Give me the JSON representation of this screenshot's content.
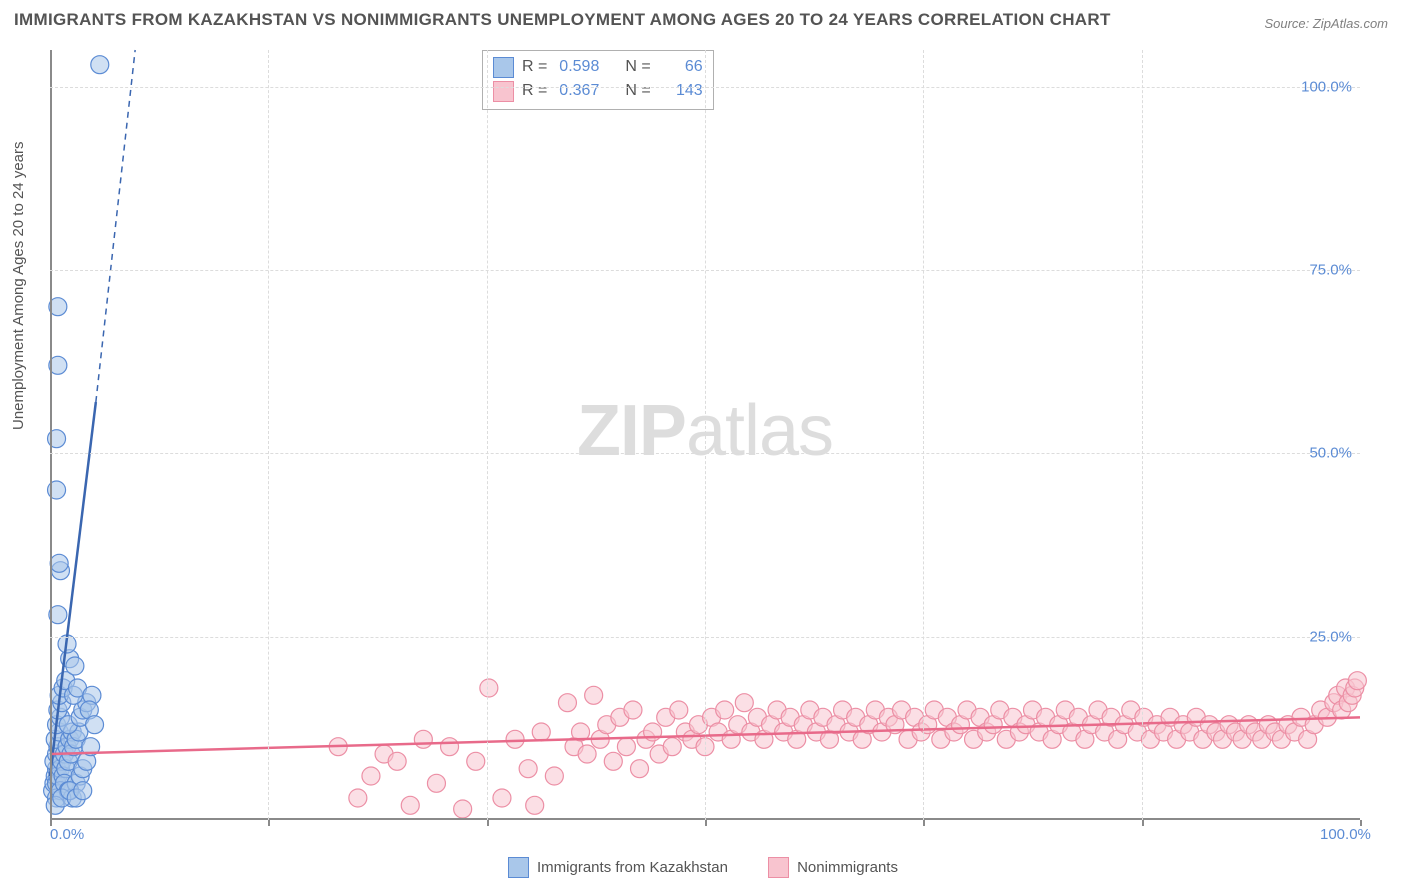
{
  "title": "IMMIGRANTS FROM KAZAKHSTAN VS NONIMMIGRANTS UNEMPLOYMENT AMONG AGES 20 TO 24 YEARS CORRELATION CHART",
  "source": "Source: ZipAtlas.com",
  "y_axis_label": "Unemployment Among Ages 20 to 24 years",
  "watermark_bold": "ZIP",
  "watermark_light": "atlas",
  "chart": {
    "type": "scatter",
    "background_color": "#ffffff",
    "grid_color": "#dcdcdc",
    "axis_color": "#8a8a8a",
    "label_color": "#5b8bd4",
    "text_color": "#545454",
    "xlim": [
      0,
      100
    ],
    "ylim": [
      0,
      105
    ],
    "x_ticks": [
      0,
      16.67,
      33.33,
      50,
      66.67,
      83.33,
      100
    ],
    "x_tick_labels": {
      "0": "0.0%",
      "100": "100.0%"
    },
    "y_ticks": [
      25,
      50,
      75,
      100
    ],
    "y_tick_labels": {
      "25": "25.0%",
      "50": "50.0%",
      "75": "75.0%",
      "100": "100.0%"
    },
    "marker_radius": 9,
    "marker_opacity": 0.55,
    "marker_stroke_width": 1.2,
    "trend_line_width": 2.5
  },
  "series": {
    "blue": {
      "fill": "#a9c7ea",
      "stroke": "#5b8bd4",
      "line_color": "#3a66b0",
      "R_label": "R =",
      "R": "0.598",
      "N_label": "N =",
      "N": "66",
      "legend_label": "Immigrants from Kazakhstan",
      "trend": {
        "x1": 0,
        "y1": 6,
        "x2": 3.5,
        "y2": 57,
        "dashed_x2": 6.5,
        "dashed_y2": 105
      },
      "points": [
        [
          0.2,
          4
        ],
        [
          0.3,
          5
        ],
        [
          0.4,
          6
        ],
        [
          0.5,
          7
        ],
        [
          0.3,
          8
        ],
        [
          0.5,
          9
        ],
        [
          0.6,
          10
        ],
        [
          0.4,
          11
        ],
        [
          0.7,
          12
        ],
        [
          0.5,
          13
        ],
        [
          0.8,
          14
        ],
        [
          0.6,
          15
        ],
        [
          0.9,
          16
        ],
        [
          0.7,
          17
        ],
        [
          1.0,
          18
        ],
        [
          1.2,
          19
        ],
        [
          0.5,
          5
        ],
        [
          0.6,
          6
        ],
        [
          0.8,
          7
        ],
        [
          0.9,
          8
        ],
        [
          1.1,
          9
        ],
        [
          1.3,
          10
        ],
        [
          1.5,
          11
        ],
        [
          1.7,
          12
        ],
        [
          1.0,
          6
        ],
        [
          1.2,
          7
        ],
        [
          1.4,
          8
        ],
        [
          1.6,
          9
        ],
        [
          1.8,
          10
        ],
        [
          2.0,
          11
        ],
        [
          2.2,
          12
        ],
        [
          1.4,
          13
        ],
        [
          2.3,
          14
        ],
        [
          2.5,
          15
        ],
        [
          2.8,
          16
        ],
        [
          1.8,
          17
        ],
        [
          2.1,
          18
        ],
        [
          3.2,
          17
        ],
        [
          3.0,
          15
        ],
        [
          3.4,
          13
        ],
        [
          0.5,
          3
        ],
        [
          0.8,
          4
        ],
        [
          1.1,
          5
        ],
        [
          1.4,
          4
        ],
        [
          1.7,
          3
        ],
        [
          2.0,
          5
        ],
        [
          2.3,
          6
        ],
        [
          2.5,
          7
        ],
        [
          2.8,
          8
        ],
        [
          3.1,
          10
        ],
        [
          1.5,
          22
        ],
        [
          1.9,
          21
        ],
        [
          1.3,
          24
        ],
        [
          0.6,
          28
        ],
        [
          0.8,
          34
        ],
        [
          0.7,
          35
        ],
        [
          0.5,
          45
        ],
        [
          0.5,
          52
        ],
        [
          0.6,
          62
        ],
        [
          0.6,
          70
        ],
        [
          3.8,
          103
        ],
        [
          0.4,
          2
        ],
        [
          0.9,
          3
        ],
        [
          1.5,
          4
        ],
        [
          2.0,
          3
        ],
        [
          2.5,
          4
        ]
      ]
    },
    "pink": {
      "fill": "#f8c4cf",
      "stroke": "#ec8fa5",
      "line_color": "#e86a8a",
      "R_label": "R =",
      "R": "0.367",
      "N_label": "N =",
      "N": "143",
      "legend_label": "Nonimmigrants",
      "trend": {
        "x1": 0,
        "y1": 9,
        "x2": 100,
        "y2": 14
      },
      "points": [
        [
          22,
          10
        ],
        [
          23.5,
          3
        ],
        [
          24.5,
          6
        ],
        [
          25.5,
          9
        ],
        [
          26.5,
          8
        ],
        [
          27.5,
          2
        ],
        [
          28.5,
          11
        ],
        [
          29.5,
          5
        ],
        [
          30.5,
          10
        ],
        [
          31.5,
          1.5
        ],
        [
          32.5,
          8
        ],
        [
          33.5,
          18
        ],
        [
          34.5,
          3
        ],
        [
          35.5,
          11
        ],
        [
          36.5,
          7
        ],
        [
          37,
          2
        ],
        [
          37.5,
          12
        ],
        [
          38.5,
          6
        ],
        [
          39.5,
          16
        ],
        [
          40,
          10
        ],
        [
          40.5,
          12
        ],
        [
          41,
          9
        ],
        [
          41.5,
          17
        ],
        [
          42,
          11
        ],
        [
          42.5,
          13
        ],
        [
          43,
          8
        ],
        [
          43.5,
          14
        ],
        [
          44,
          10
        ],
        [
          44.5,
          15
        ],
        [
          45,
          7
        ],
        [
          45.5,
          11
        ],
        [
          46,
          12
        ],
        [
          46.5,
          9
        ],
        [
          47,
          14
        ],
        [
          47.5,
          10
        ],
        [
          48,
          15
        ],
        [
          48.5,
          12
        ],
        [
          49,
          11
        ],
        [
          49.5,
          13
        ],
        [
          50,
          10
        ],
        [
          50.5,
          14
        ],
        [
          51,
          12
        ],
        [
          51.5,
          15
        ],
        [
          52,
          11
        ],
        [
          52.5,
          13
        ],
        [
          53,
          16
        ],
        [
          53.5,
          12
        ],
        [
          54,
          14
        ],
        [
          54.5,
          11
        ],
        [
          55,
          13
        ],
        [
          55.5,
          15
        ],
        [
          56,
          12
        ],
        [
          56.5,
          14
        ],
        [
          57,
          11
        ],
        [
          57.5,
          13
        ],
        [
          58,
          15
        ],
        [
          58.5,
          12
        ],
        [
          59,
          14
        ],
        [
          59.5,
          11
        ],
        [
          60,
          13
        ],
        [
          60.5,
          15
        ],
        [
          61,
          12
        ],
        [
          61.5,
          14
        ],
        [
          62,
          11
        ],
        [
          62.5,
          13
        ],
        [
          63,
          15
        ],
        [
          63.5,
          12
        ],
        [
          64,
          14
        ],
        [
          64.5,
          13
        ],
        [
          65,
          15
        ],
        [
          65.5,
          11
        ],
        [
          66,
          14
        ],
        [
          66.5,
          12
        ],
        [
          67,
          13
        ],
        [
          67.5,
          15
        ],
        [
          68,
          11
        ],
        [
          68.5,
          14
        ],
        [
          69,
          12
        ],
        [
          69.5,
          13
        ],
        [
          70,
          15
        ],
        [
          70.5,
          11
        ],
        [
          71,
          14
        ],
        [
          71.5,
          12
        ],
        [
          72,
          13
        ],
        [
          72.5,
          15
        ],
        [
          73,
          11
        ],
        [
          73.5,
          14
        ],
        [
          74,
          12
        ],
        [
          74.5,
          13
        ],
        [
          75,
          15
        ],
        [
          75.5,
          12
        ],
        [
          76,
          14
        ],
        [
          76.5,
          11
        ],
        [
          77,
          13
        ],
        [
          77.5,
          15
        ],
        [
          78,
          12
        ],
        [
          78.5,
          14
        ],
        [
          79,
          11
        ],
        [
          79.5,
          13
        ],
        [
          80,
          15
        ],
        [
          80.5,
          12
        ],
        [
          81,
          14
        ],
        [
          81.5,
          11
        ],
        [
          82,
          13
        ],
        [
          82.5,
          15
        ],
        [
          83,
          12
        ],
        [
          83.5,
          14
        ],
        [
          84,
          11
        ],
        [
          84.5,
          13
        ],
        [
          85,
          12
        ],
        [
          85.5,
          14
        ],
        [
          86,
          11
        ],
        [
          86.5,
          13
        ],
        [
          87,
          12
        ],
        [
          87.5,
          14
        ],
        [
          88,
          11
        ],
        [
          88.5,
          13
        ],
        [
          89,
          12
        ],
        [
          89.5,
          11
        ],
        [
          90,
          13
        ],
        [
          90.5,
          12
        ],
        [
          91,
          11
        ],
        [
          91.5,
          13
        ],
        [
          92,
          12
        ],
        [
          92.5,
          11
        ],
        [
          93,
          13
        ],
        [
          93.5,
          12
        ],
        [
          94,
          11
        ],
        [
          94.5,
          13
        ],
        [
          95,
          12
        ],
        [
          95.5,
          14
        ],
        [
          96,
          11
        ],
        [
          96.5,
          13
        ],
        [
          97,
          15
        ],
        [
          97.5,
          14
        ],
        [
          98,
          16
        ],
        [
          98.3,
          17
        ],
        [
          98.6,
          15
        ],
        [
          98.9,
          18
        ],
        [
          99.1,
          16
        ],
        [
          99.4,
          17
        ],
        [
          99.6,
          18
        ],
        [
          99.8,
          19
        ]
      ]
    }
  }
}
